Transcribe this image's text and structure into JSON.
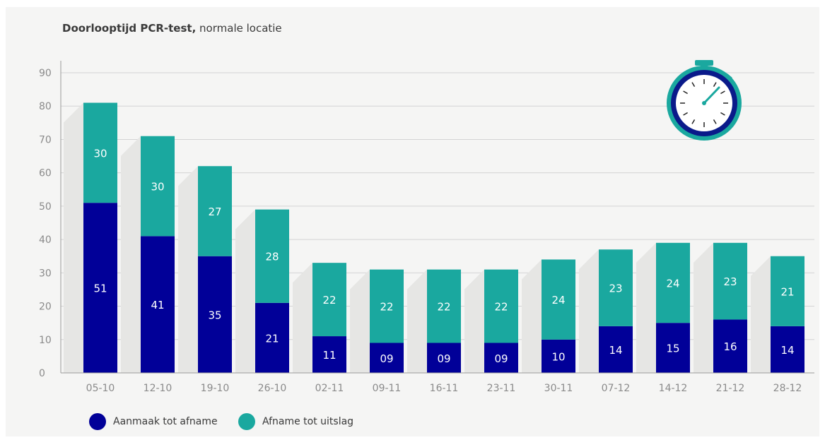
{
  "title_bold": "Doorlooptijd PCR-test,",
  "title_rest": " normale locatie",
  "colors": {
    "bottom": "#010098",
    "top": "#1aa89f",
    "grid": "#d4d4d4",
    "shadow": "#e6e6e4"
  },
  "chart_data": {
    "type": "bar",
    "stacked": true,
    "categories": [
      "05-10",
      "12-10",
      "19-10",
      "26-10",
      "02-11",
      "09-11",
      "16-11",
      "23-11",
      "30-11",
      "07-12",
      "14-12",
      "21-12",
      "28-12"
    ],
    "series": [
      {
        "name": "Aanmaak tot afname",
        "values": [
          51,
          41,
          35,
          21,
          11,
          9,
          9,
          9,
          10,
          14,
          15,
          16,
          14
        ],
        "labels": [
          "51",
          "41",
          "35",
          "21",
          "11",
          "09",
          "09",
          "09",
          "10",
          "14",
          "15",
          "16",
          "14"
        ]
      },
      {
        "name": "Afname tot uitslag",
        "values": [
          30,
          30,
          27,
          28,
          22,
          22,
          22,
          22,
          24,
          23,
          24,
          23,
          21
        ],
        "labels": [
          "30",
          "30",
          "27",
          "28",
          "22",
          "22",
          "22",
          "22",
          "24",
          "23",
          "24",
          "23",
          "21"
        ]
      }
    ],
    "ylim": [
      0,
      90
    ],
    "yticks": [
      0,
      10,
      20,
      30,
      40,
      50,
      60,
      70,
      80,
      90
    ],
    "grid": true,
    "legend_position": "bottom-left"
  },
  "legend": [
    {
      "label": "Aanmaak tot afname",
      "color": "#010098"
    },
    {
      "label": "Afname tot uitslag",
      "color": "#1aa89f"
    }
  ],
  "icons": {
    "stopwatch": "stopwatch-icon"
  }
}
